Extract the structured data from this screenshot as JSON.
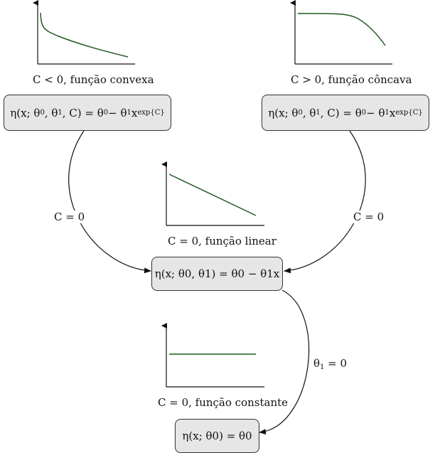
{
  "plots": {
    "convex": {
      "caption": "C < 0, função convexa"
    },
    "concave": {
      "caption": "C > 0, função côncava"
    },
    "linear": {
      "caption": "C = 0, função linear"
    },
    "constant": {
      "caption": "C = 0, função constante"
    }
  },
  "nodes": {
    "left": {
      "lhs": "η(x; θ",
      "args": ", C) = θ",
      "rhs": " − θ",
      "pow_base": "x",
      "pow_exp": "exp{C}"
    },
    "right": {
      "lhs": "η(x; θ",
      "args": ", C) = θ",
      "rhs": " − θ",
      "pow_base": "x",
      "pow_exp": "exp{C}"
    },
    "middle": {
      "text": "η(x; θ0, θ1) = θ0 − θ1x"
    },
    "bottom": {
      "text": "η(x; θ0) = θ0"
    }
  },
  "edges": {
    "left_to_middle": {
      "label": "C = 0"
    },
    "right_to_middle": {
      "label": "C = 0"
    },
    "middle_to_bottom": {
      "label_symbol": "θ",
      "label_sub": "1",
      "label_rest": " = 0"
    }
  },
  "colors": {
    "curve": "#1f5a1f",
    "axis": "#111111",
    "box_fill": "#e6e6e6"
  }
}
